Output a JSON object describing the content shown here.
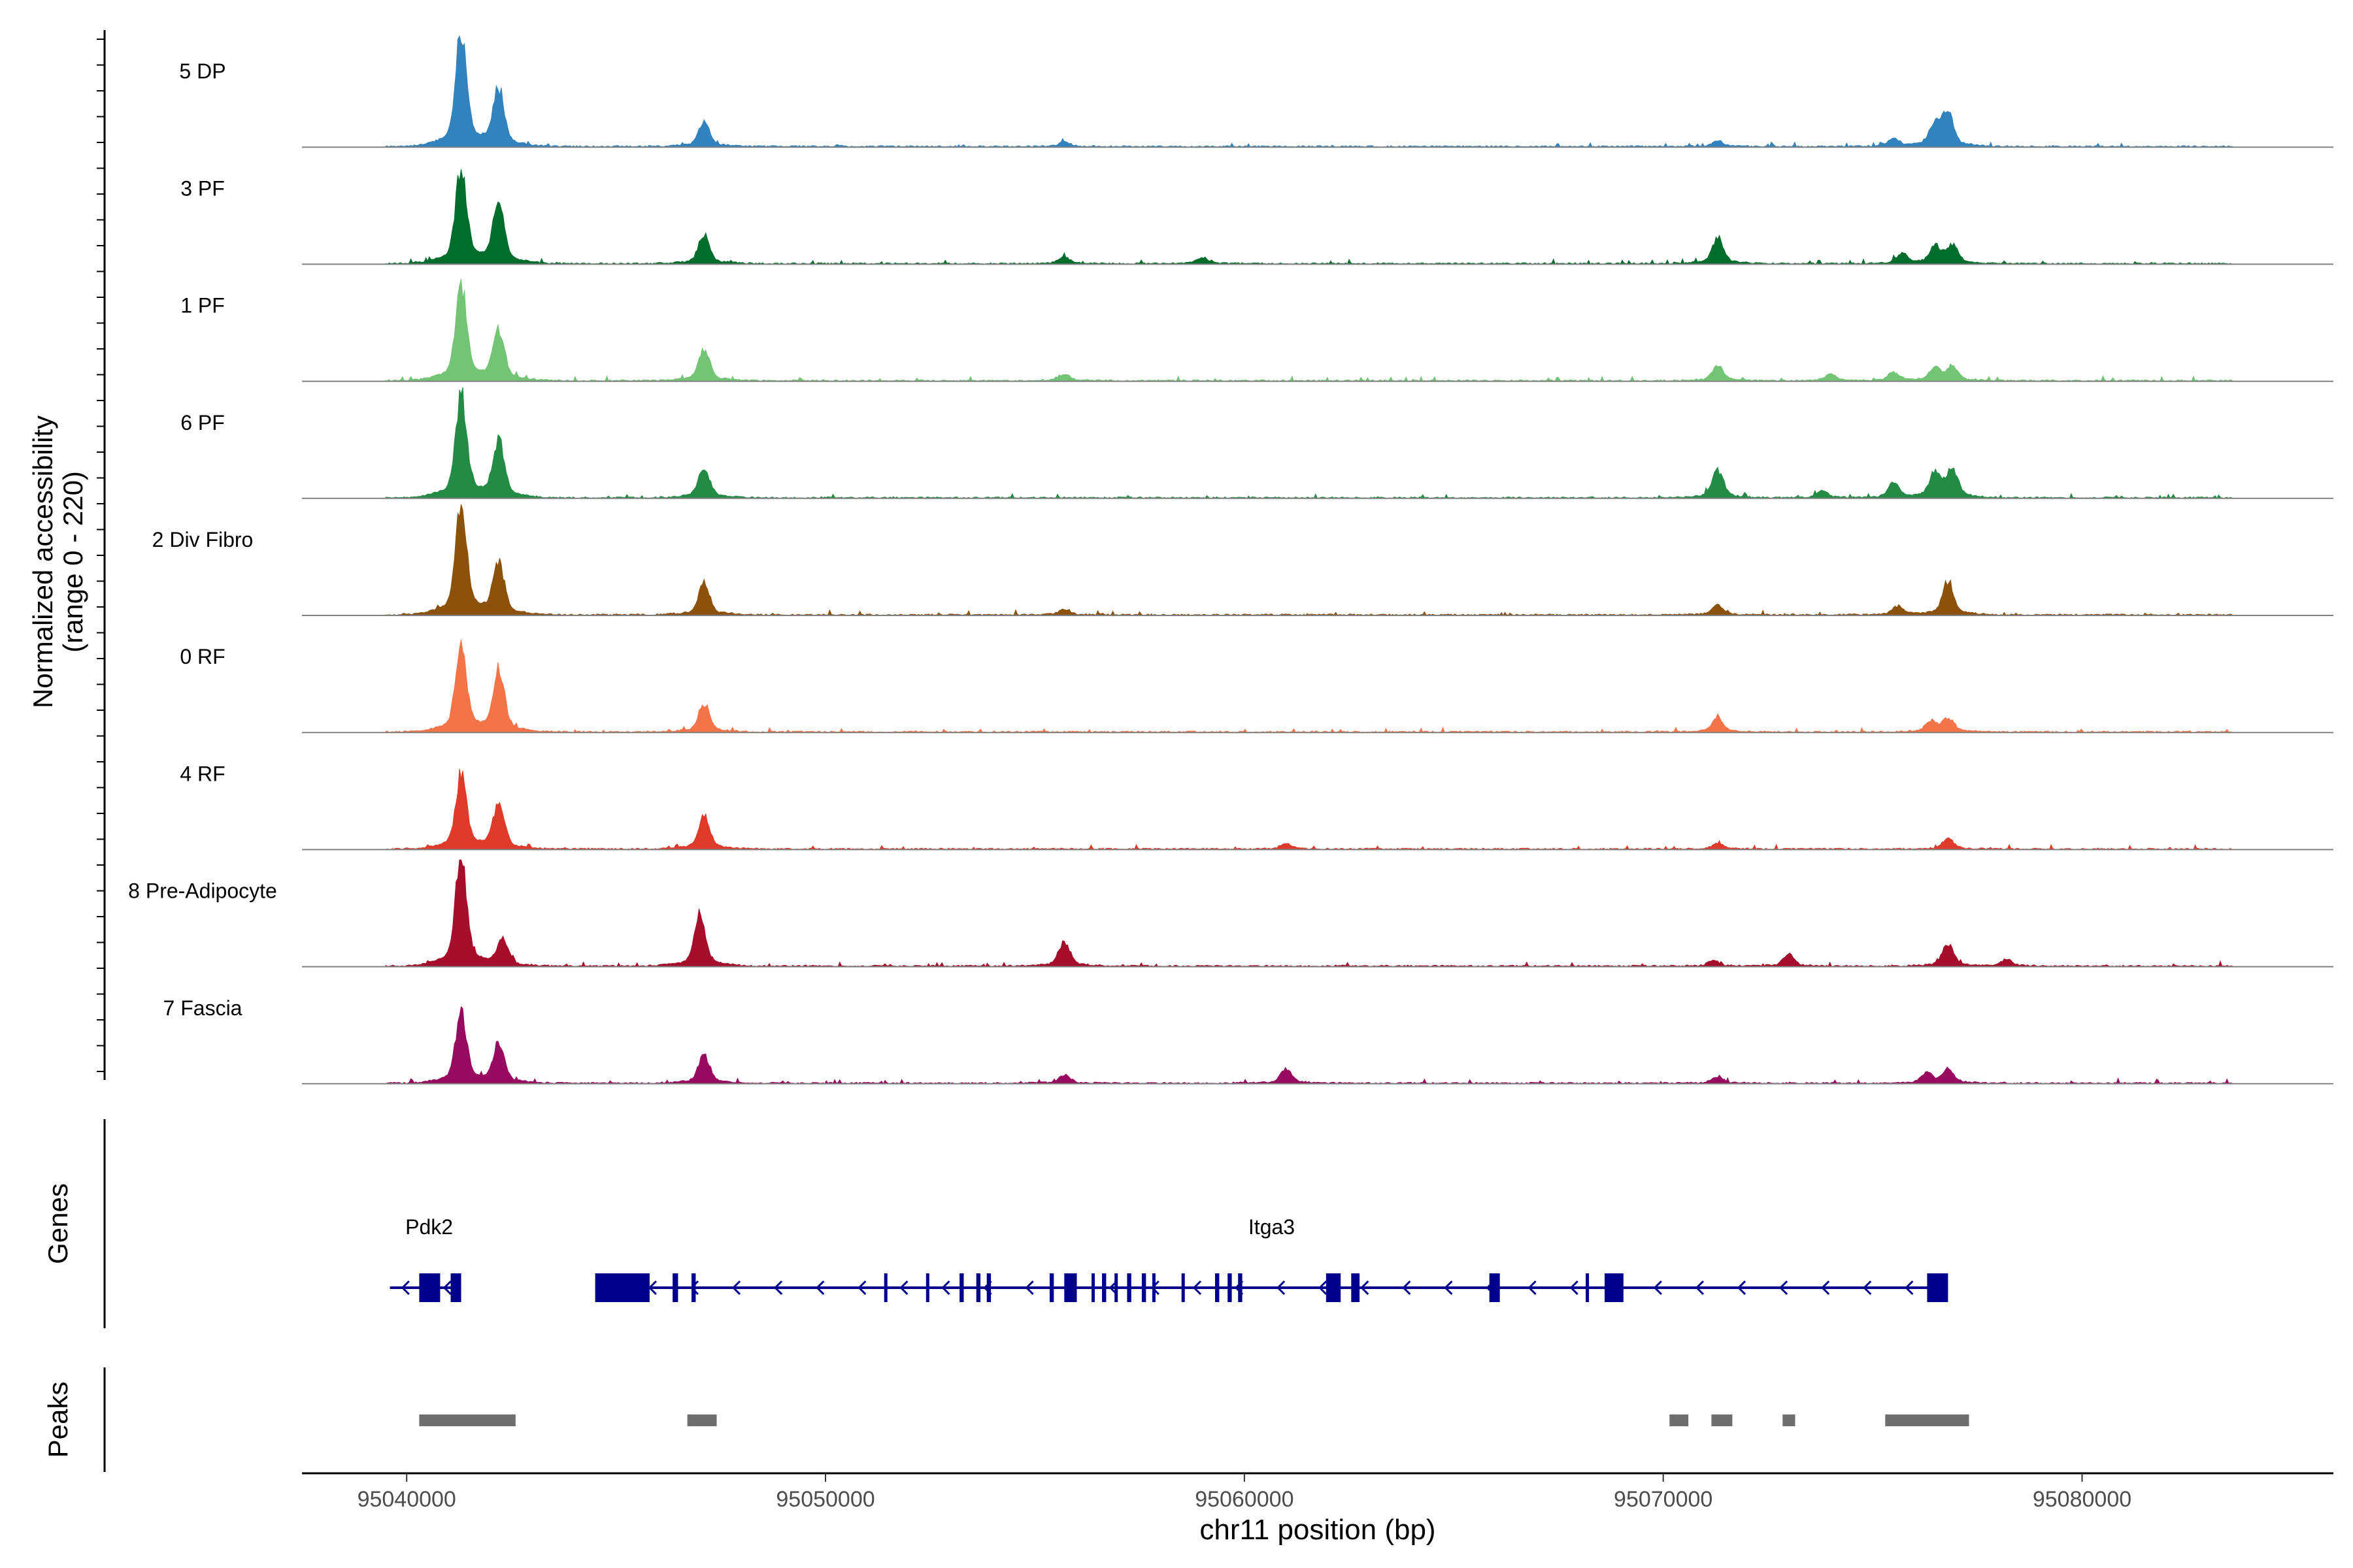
{
  "chart_data": {
    "type": "area",
    "ylabel": "Normalized accessibility",
    "ylabel_range": "(range 0 - 220)",
    "ylim": [
      0,
      220
    ],
    "xlabel": "chr11 position (bp)",
    "xlim": [
      95037500,
      95086000
    ],
    "xticks": [
      95040000,
      95050000,
      95060000,
      95070000,
      95080000
    ],
    "xtick_labels": [
      "95040000",
      "95050000",
      "95060000",
      "95070000",
      "95080000"
    ],
    "gene_panel_label": "Genes",
    "peak_panel_label": "Peaks",
    "tracks": [
      {
        "name": "5 DP",
        "color": "#3182bd",
        "peaks": [
          [
            95041300,
            200
          ],
          [
            95042200,
            100
          ],
          [
            95047100,
            42
          ],
          [
            95075500,
            14
          ],
          [
            95076500,
            40
          ],
          [
            95076800,
            55
          ],
          [
            95071300,
            10
          ],
          [
            95055700,
            8
          ]
        ]
      },
      {
        "name": "3 PF",
        "color": "#006d2c",
        "peaks": [
          [
            95041300,
            170
          ],
          [
            95042200,
            110
          ],
          [
            95047100,
            50
          ],
          [
            95071300,
            45
          ],
          [
            95076500,
            30
          ],
          [
            95076900,
            32
          ],
          [
            95075700,
            18
          ],
          [
            95055700,
            12
          ],
          [
            95059000,
            10
          ]
        ]
      },
      {
        "name": "1 PF",
        "color": "#74c476",
        "peaks": [
          [
            95041300,
            170
          ],
          [
            95042200,
            90
          ],
          [
            95047100,
            55
          ],
          [
            95071300,
            28
          ],
          [
            95076500,
            22
          ],
          [
            95076900,
            25
          ],
          [
            95075500,
            15
          ],
          [
            95074000,
            12
          ],
          [
            95055700,
            12
          ]
        ]
      },
      {
        "name": "6 PF",
        "color": "#238b45",
        "peaks": [
          [
            95041300,
            180
          ],
          [
            95042200,
            100
          ],
          [
            95047100,
            55
          ],
          [
            95071300,
            50
          ],
          [
            95076500,
            45
          ],
          [
            95076900,
            50
          ],
          [
            95075500,
            25
          ],
          [
            95073800,
            12
          ]
        ]
      },
      {
        "name": "2 Div Fibro",
        "color": "#8c510a",
        "peaks": [
          [
            95041300,
            200
          ],
          [
            95042200,
            90
          ],
          [
            95047100,
            55
          ],
          [
            95076800,
            60
          ],
          [
            95071300,
            18
          ],
          [
            95075600,
            15
          ],
          [
            95055700,
            10
          ]
        ]
      },
      {
        "name": "0 RF",
        "color": "#f4744a",
        "peaks": [
          [
            95041300,
            150
          ],
          [
            95042200,
            110
          ],
          [
            95047100,
            50
          ],
          [
            95071300,
            25
          ],
          [
            95076800,
            24
          ],
          [
            95076400,
            18
          ]
        ]
      },
      {
        "name": "4 RF",
        "color": "#de3b2a",
        "peaks": [
          [
            95041300,
            130
          ],
          [
            95042200,
            80
          ],
          [
            95047100,
            60
          ],
          [
            95076800,
            18
          ],
          [
            95071300,
            10
          ],
          [
            95061000,
            10
          ]
        ]
      },
      {
        "name": "8 Pre-Adipocyte",
        "color": "#a50f2b",
        "peaks": [
          [
            95041300,
            200
          ],
          [
            95042300,
            45
          ],
          [
            95047000,
            90
          ],
          [
            95055700,
            45
          ],
          [
            95076800,
            40
          ],
          [
            95073000,
            20
          ],
          [
            95078200,
            12
          ],
          [
            95071200,
            10
          ]
        ]
      },
      {
        "name": "7 Fascia",
        "color": "#980a60",
        "peaks": [
          [
            95041300,
            120
          ],
          [
            95042200,
            70
          ],
          [
            95047100,
            50
          ],
          [
            95061000,
            25
          ],
          [
            95076800,
            25
          ],
          [
            95076300,
            18
          ],
          [
            95055700,
            15
          ],
          [
            95071300,
            12
          ]
        ]
      }
    ],
    "genes": [
      {
        "name": "Pdk2",
        "start": 95039600,
        "end": 95041300,
        "strand": "-",
        "exons": [
          [
            95040300,
            95040800
          ],
          [
            95041050,
            95041300
          ]
        ]
      },
      {
        "name": "Itga3",
        "start": 95044500,
        "end": 95076800,
        "strand": "-",
        "exons": [
          [
            95044500,
            95045800
          ],
          [
            95046350,
            95046480
          ],
          [
            95046800,
            95046900
          ],
          [
            95051400,
            95051450
          ],
          [
            95052400,
            95052450
          ],
          [
            95053200,
            95053300
          ],
          [
            95053600,
            95053700
          ],
          [
            95053850,
            95053950
          ],
          [
            95055350,
            95055450
          ],
          [
            95055700,
            95056000
          ],
          [
            95056350,
            95056400
          ],
          [
            95056600,
            95056700
          ],
          [
            95056900,
            95056950
          ],
          [
            95057200,
            95057300
          ],
          [
            95057550,
            95057650
          ],
          [
            95057800,
            95057850
          ],
          [
            95058500,
            95058550
          ],
          [
            95059300,
            95059400
          ],
          [
            95059600,
            95059700
          ],
          [
            95059850,
            95059950
          ],
          [
            95061950,
            95062300
          ],
          [
            95062550,
            95062750
          ],
          [
            95065850,
            95066100
          ],
          [
            95068150,
            95068200
          ],
          [
            95068600,
            95069050
          ],
          [
            95076300,
            95076800
          ]
        ]
      }
    ],
    "peaks": [
      [
        95040300,
        95042600
      ],
      [
        95046700,
        95047400
      ],
      [
        95070150,
        95070600
      ],
      [
        95071150,
        95071650
      ],
      [
        95072850,
        95073150
      ],
      [
        95075300,
        95077300
      ]
    ]
  }
}
